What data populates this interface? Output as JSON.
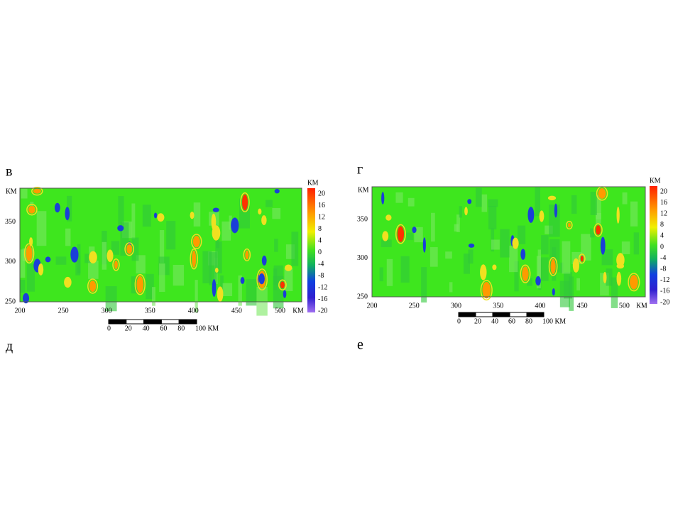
{
  "panels": [
    {
      "label": "в",
      "y_unit": "КМ",
      "x_unit": "КМ",
      "colorbar_unit": "КМ",
      "xticks": [
        "200",
        "250",
        "300",
        "350",
        "400",
        "450",
        "500"
      ],
      "yticks": [
        "250",
        "300",
        "350"
      ],
      "colorbar_ticks": [
        "20",
        "16",
        "12",
        "8",
        "4",
        "0",
        "-4",
        "-8",
        "-12",
        "-16",
        "-20"
      ],
      "scale_ticks": [
        "0",
        "20",
        "40",
        "60",
        "80",
        "100 КМ"
      ]
    },
    {
      "label": "г",
      "y_unit": "КМ",
      "x_unit": "КМ",
      "colorbar_unit": "КМ",
      "xticks": [
        "200",
        "250",
        "300",
        "350",
        "400",
        "450",
        "500"
      ],
      "yticks": [
        "250",
        "300",
        "350"
      ],
      "colorbar_ticks": [
        "20",
        "16",
        "12",
        "8",
        "4",
        "0",
        "-4",
        "-8",
        "-12",
        "-16",
        "-20"
      ],
      "scale_ticks": [
        "0",
        "20",
        "40",
        "60",
        "80",
        "100 КМ"
      ]
    }
  ],
  "lower_labels": [
    "д",
    "е"
  ]
}
